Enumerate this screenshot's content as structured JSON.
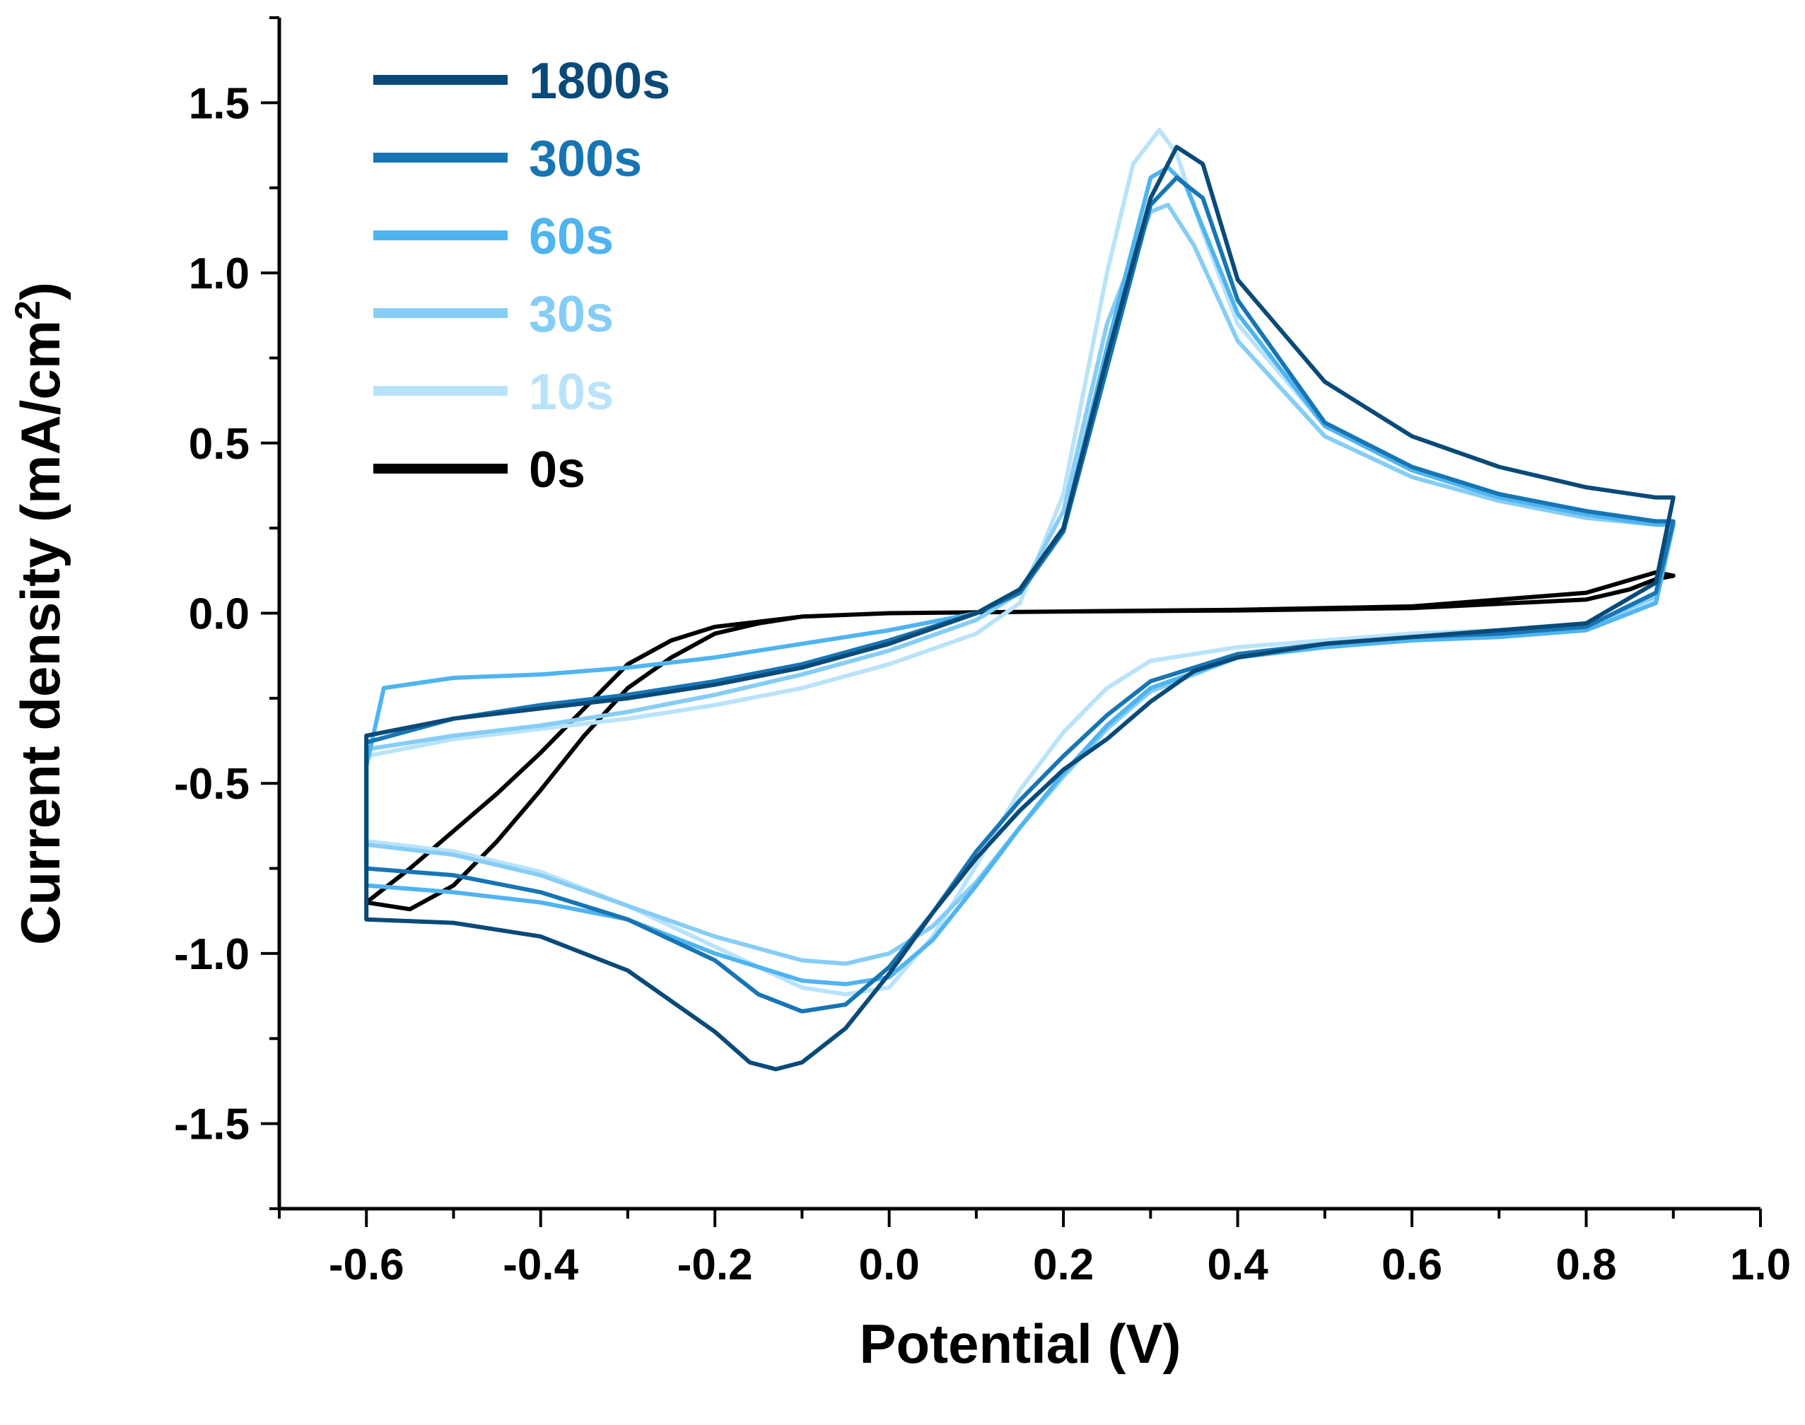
{
  "chart_data": {
    "type": "line",
    "title": "",
    "xlabel": "Potential (V)",
    "ylabel_main": "Current density (mA/cm",
    "ylabel_sup": "2",
    "ylabel_close": ")",
    "xlim": [
      -0.7,
      1.0
    ],
    "ylim": [
      -1.75,
      1.75
    ],
    "x_ticks": [
      -0.6,
      -0.4,
      -0.2,
      0.0,
      0.2,
      0.4,
      0.6,
      0.8,
      1.0
    ],
    "x_tick_labels": [
      "-0.6",
      "-0.4",
      "-0.2",
      "0.0",
      "0.2",
      "0.4",
      "0.6",
      "0.8",
      "1.0"
    ],
    "y_ticks": [
      -1.5,
      -1.0,
      -0.5,
      0.0,
      0.5,
      1.0,
      1.5
    ],
    "y_tick_labels": [
      "-1.5",
      "-1.0",
      "-0.5",
      "0.0",
      "0.5",
      "1.0",
      "1.5"
    ],
    "legend_position": "top-left",
    "series": [
      {
        "name": "1800s",
        "color": "#0a4a78",
        "x": [
          -0.6,
          -0.5,
          -0.4,
          -0.3,
          -0.2,
          -0.1,
          0.0,
          0.1,
          0.15,
          0.2,
          0.25,
          0.3,
          0.33,
          0.36,
          0.4,
          0.5,
          0.6,
          0.7,
          0.8,
          0.88,
          0.9,
          0.88,
          0.8,
          0.7,
          0.6,
          0.5,
          0.4,
          0.35,
          0.3,
          0.25,
          0.2,
          0.15,
          0.1,
          0.05,
          0.0,
          -0.05,
          -0.1,
          -0.13,
          -0.16,
          -0.2,
          -0.3,
          -0.4,
          -0.5,
          -0.6,
          -0.6
        ],
        "y": [
          -0.36,
          -0.31,
          -0.28,
          -0.25,
          -0.21,
          -0.16,
          -0.09,
          0.0,
          0.07,
          0.25,
          0.75,
          1.22,
          1.37,
          1.32,
          0.98,
          0.68,
          0.52,
          0.43,
          0.37,
          0.34,
          0.34,
          0.09,
          -0.03,
          -0.05,
          -0.07,
          -0.09,
          -0.13,
          -0.17,
          -0.26,
          -0.37,
          -0.46,
          -0.58,
          -0.72,
          -0.88,
          -1.06,
          -1.22,
          -1.32,
          -1.34,
          -1.32,
          -1.23,
          -1.05,
          -0.95,
          -0.91,
          -0.9,
          -0.36
        ]
      },
      {
        "name": "300s",
        "color": "#1875b4",
        "x": [
          -0.6,
          -0.5,
          -0.4,
          -0.3,
          -0.2,
          -0.1,
          0.0,
          0.1,
          0.15,
          0.2,
          0.25,
          0.3,
          0.33,
          0.36,
          0.4,
          0.5,
          0.6,
          0.7,
          0.8,
          0.88,
          0.9,
          0.88,
          0.8,
          0.7,
          0.6,
          0.5,
          0.4,
          0.3,
          0.25,
          0.2,
          0.15,
          0.1,
          0.05,
          0.0,
          -0.05,
          -0.1,
          -0.15,
          -0.2,
          -0.3,
          -0.4,
          -0.5,
          -0.6,
          -0.6
        ],
        "y": [
          -0.38,
          -0.31,
          -0.27,
          -0.24,
          -0.2,
          -0.15,
          -0.08,
          0.0,
          0.06,
          0.24,
          0.72,
          1.2,
          1.28,
          1.22,
          0.92,
          0.56,
          0.43,
          0.35,
          0.3,
          0.27,
          0.27,
          0.06,
          -0.04,
          -0.06,
          -0.07,
          -0.09,
          -0.12,
          -0.2,
          -0.3,
          -0.42,
          -0.55,
          -0.7,
          -0.88,
          -1.04,
          -1.15,
          -1.17,
          -1.12,
          -1.02,
          -0.9,
          -0.82,
          -0.77,
          -0.75,
          -0.38
        ]
      },
      {
        "name": "60s",
        "color": "#4fb4f0",
        "x": [
          -0.6,
          -0.58,
          -0.5,
          -0.4,
          -0.3,
          -0.2,
          -0.1,
          0.0,
          0.1,
          0.15,
          0.2,
          0.25,
          0.3,
          0.32,
          0.34,
          0.4,
          0.5,
          0.6,
          0.7,
          0.8,
          0.88,
          0.9,
          0.88,
          0.8,
          0.7,
          0.6,
          0.5,
          0.4,
          0.3,
          0.25,
          0.2,
          0.15,
          0.1,
          0.05,
          0.0,
          -0.05,
          -0.1,
          -0.2,
          -0.3,
          -0.4,
          -0.5,
          -0.6,
          -0.6
        ],
        "y": [
          -0.45,
          -0.22,
          -0.19,
          -0.18,
          -0.16,
          -0.13,
          -0.09,
          -0.05,
          0.0,
          0.06,
          0.25,
          0.78,
          1.28,
          1.31,
          1.26,
          0.88,
          0.55,
          0.42,
          0.34,
          0.29,
          0.26,
          0.26,
          0.03,
          -0.05,
          -0.07,
          -0.08,
          -0.1,
          -0.13,
          -0.22,
          -0.33,
          -0.47,
          -0.63,
          -0.8,
          -0.96,
          -1.07,
          -1.09,
          -1.08,
          -1.0,
          -0.9,
          -0.85,
          -0.82,
          -0.8,
          -0.45
        ]
      },
      {
        "name": "30s",
        "color": "#86cdf5",
        "x": [
          -0.6,
          -0.5,
          -0.4,
          -0.3,
          -0.2,
          -0.1,
          0.0,
          0.1,
          0.15,
          0.2,
          0.25,
          0.3,
          0.32,
          0.35,
          0.4,
          0.5,
          0.6,
          0.7,
          0.8,
          0.88,
          0.9,
          0.88,
          0.8,
          0.7,
          0.6,
          0.5,
          0.4,
          0.3,
          0.25,
          0.2,
          0.15,
          0.1,
          0.05,
          0.0,
          -0.05,
          -0.1,
          -0.2,
          -0.3,
          -0.4,
          -0.5,
          -0.6,
          -0.6
        ],
        "y": [
          -0.4,
          -0.36,
          -0.33,
          -0.29,
          -0.24,
          -0.18,
          -0.11,
          -0.02,
          0.06,
          0.3,
          0.85,
          1.18,
          1.2,
          1.08,
          0.8,
          0.52,
          0.4,
          0.33,
          0.28,
          0.26,
          0.26,
          0.05,
          -0.04,
          -0.06,
          -0.08,
          -0.1,
          -0.13,
          -0.23,
          -0.34,
          -0.48,
          -0.63,
          -0.79,
          -0.92,
          -1.0,
          -1.03,
          -1.02,
          -0.95,
          -0.86,
          -0.77,
          -0.71,
          -0.68,
          -0.4
        ]
      },
      {
        "name": "10s",
        "color": "#b9e3fa",
        "x": [
          -0.6,
          -0.5,
          -0.4,
          -0.3,
          -0.2,
          -0.1,
          0.0,
          0.1,
          0.15,
          0.2,
          0.25,
          0.28,
          0.31,
          0.33,
          0.36,
          0.4,
          0.5,
          0.6,
          0.7,
          0.8,
          0.88,
          0.9,
          0.88,
          0.8,
          0.7,
          0.6,
          0.5,
          0.4,
          0.3,
          0.25,
          0.2,
          0.15,
          0.1,
          0.05,
          0.0,
          -0.05,
          -0.1,
          -0.2,
          -0.3,
          -0.4,
          -0.5,
          -0.6,
          -0.6
        ],
        "y": [
          -0.42,
          -0.37,
          -0.34,
          -0.31,
          -0.27,
          -0.22,
          -0.15,
          -0.06,
          0.03,
          0.35,
          1.0,
          1.32,
          1.42,
          1.35,
          1.12,
          0.85,
          0.55,
          0.42,
          0.34,
          0.29,
          0.27,
          0.27,
          0.04,
          -0.04,
          -0.05,
          -0.06,
          -0.08,
          -0.1,
          -0.14,
          -0.22,
          -0.35,
          -0.52,
          -0.74,
          -0.95,
          -1.1,
          -1.12,
          -1.1,
          -0.98,
          -0.86,
          -0.76,
          -0.7,
          -0.67,
          -0.42
        ]
      },
      {
        "name": "0s",
        "color": "#000000",
        "x": [
          -0.6,
          -0.55,
          -0.5,
          -0.45,
          -0.4,
          -0.35,
          -0.3,
          -0.25,
          -0.2,
          -0.1,
          0.0,
          0.2,
          0.4,
          0.6,
          0.8,
          0.85,
          0.88,
          0.9,
          0.88,
          0.8,
          0.6,
          0.4,
          0.2,
          0.0,
          -0.1,
          -0.15,
          -0.2,
          -0.25,
          -0.3,
          -0.35,
          -0.4,
          -0.45,
          -0.5,
          -0.55,
          -0.6
        ],
        "y": [
          -0.85,
          -0.75,
          -0.64,
          -0.53,
          -0.41,
          -0.28,
          -0.15,
          -0.08,
          -0.04,
          -0.01,
          0.0,
          0.005,
          0.008,
          0.015,
          0.04,
          0.07,
          0.1,
          0.11,
          0.12,
          0.06,
          0.02,
          0.01,
          0.005,
          0.0,
          -0.01,
          -0.03,
          -0.06,
          -0.13,
          -0.22,
          -0.36,
          -0.52,
          -0.67,
          -0.8,
          -0.87,
          -0.85
        ]
      }
    ]
  }
}
